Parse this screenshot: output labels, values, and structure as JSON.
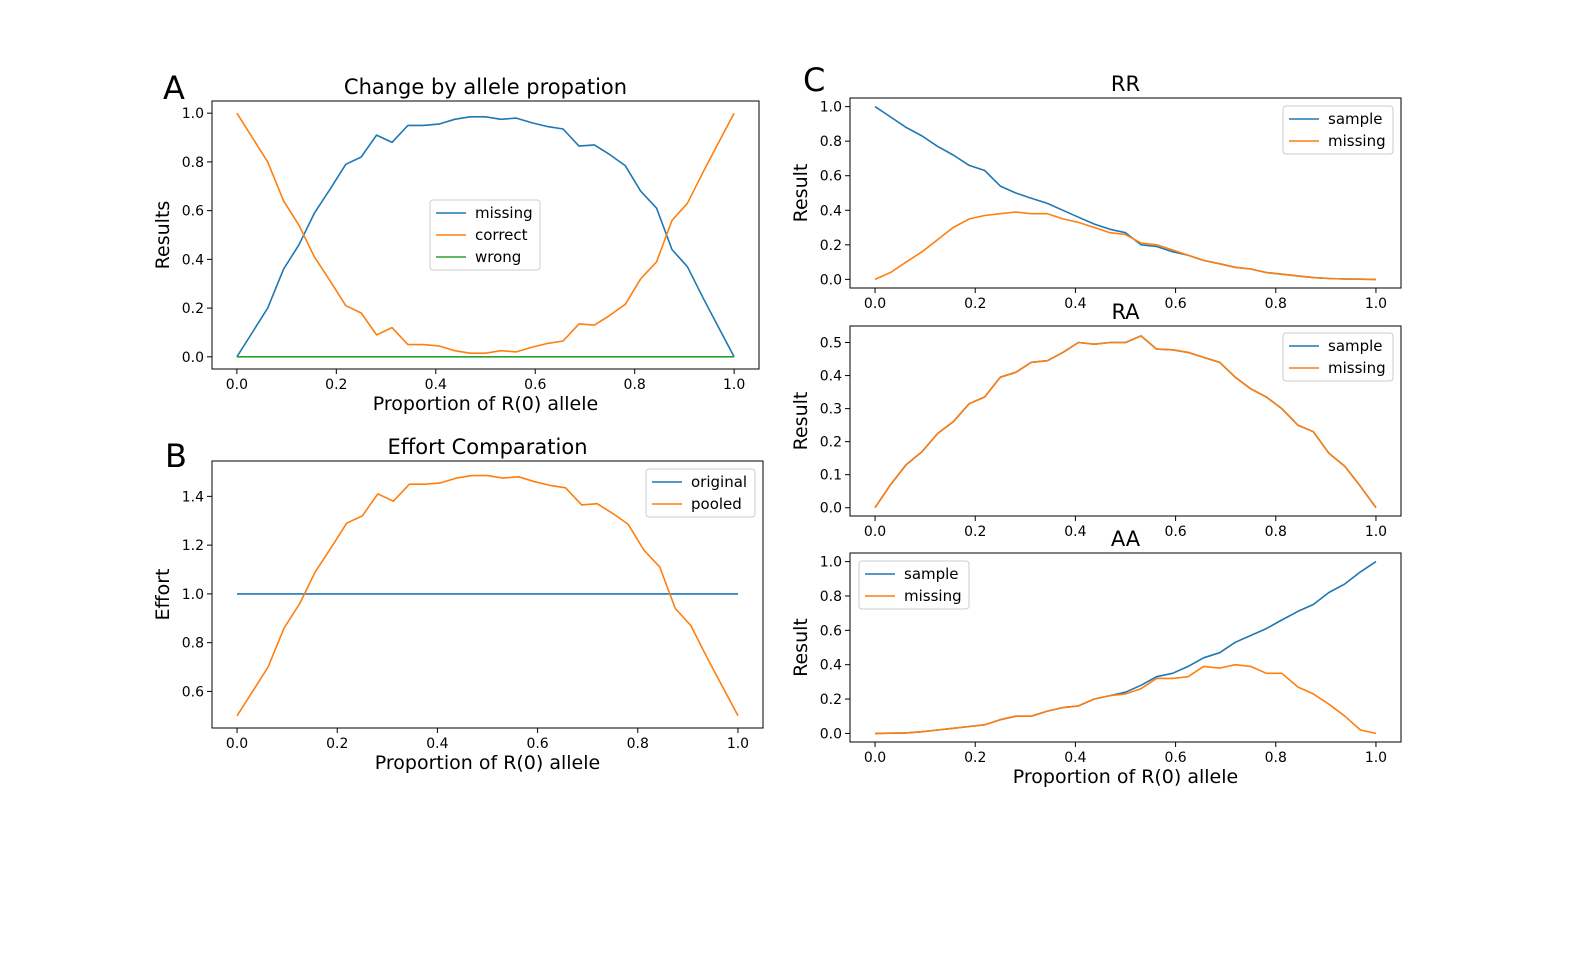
{
  "colors": {
    "blue": "#1f77b4",
    "orange": "#ff7f0e",
    "green": "#2ca02c"
  },
  "chart_data": [
    {
      "panel": "A",
      "type": "line",
      "title": "Change by allele propation",
      "xlabel": "Proportion of R(0) allele",
      "ylabel": "Results",
      "xlim": [
        -0.05,
        1.05
      ],
      "ylim": [
        -0.05,
        1.05
      ],
      "xticks": [
        0.0,
        0.2,
        0.4,
        0.6,
        0.8,
        1.0
      ],
      "yticks": [
        0.0,
        0.2,
        0.4,
        0.6,
        0.8,
        1.0
      ],
      "legend": "center",
      "x": [
        0,
        0.031,
        0.062,
        0.094,
        0.125,
        0.156,
        0.188,
        0.219,
        0.25,
        0.281,
        0.312,
        0.344,
        0.375,
        0.406,
        0.438,
        0.469,
        0.5,
        0.531,
        0.562,
        0.594,
        0.625,
        0.656,
        0.688,
        0.719,
        0.75,
        0.781,
        0.812,
        0.844,
        0.875,
        0.906,
        0.938,
        0.969,
        1.0
      ],
      "series": [
        {
          "name": "missing",
          "color": "#1f77b4",
          "values": [
            0.0,
            0.1,
            0.2,
            0.36,
            0.46,
            0.59,
            0.69,
            0.79,
            0.82,
            0.91,
            0.88,
            0.95,
            0.95,
            0.955,
            0.975,
            0.985,
            0.985,
            0.975,
            0.98,
            0.96,
            0.945,
            0.935,
            0.865,
            0.87,
            0.83,
            0.785,
            0.68,
            0.61,
            0.44,
            0.37,
            0.24,
            0.12,
            0.0
          ]
        },
        {
          "name": "correct",
          "color": "#ff7f0e",
          "values": [
            1.0,
            0.9,
            0.8,
            0.64,
            0.54,
            0.41,
            0.31,
            0.21,
            0.18,
            0.09,
            0.12,
            0.05,
            0.05,
            0.045,
            0.025,
            0.015,
            0.015,
            0.025,
            0.02,
            0.04,
            0.055,
            0.065,
            0.135,
            0.13,
            0.17,
            0.215,
            0.32,
            0.39,
            0.56,
            0.63,
            0.76,
            0.88,
            1.0
          ]
        },
        {
          "name": "wrong",
          "color": "#2ca02c",
          "values": [
            0,
            0,
            0,
            0,
            0,
            0,
            0,
            0,
            0,
            0,
            0,
            0,
            0,
            0,
            0,
            0,
            0,
            0,
            0,
            0,
            0,
            0,
            0,
            0,
            0,
            0,
            0,
            0,
            0,
            0,
            0,
            0,
            0
          ]
        }
      ]
    },
    {
      "panel": "B",
      "type": "line",
      "title": "Effort Comparation",
      "xlabel": "Proportion of R(0) allele",
      "ylabel": "Effort",
      "xlim": [
        -0.05,
        1.05
      ],
      "ylim": [
        0.45,
        1.545
      ],
      "xticks": [
        0.0,
        0.2,
        0.4,
        0.6,
        0.8,
        1.0
      ],
      "yticks": [
        0.6,
        0.8,
        1.0,
        1.2,
        1.4
      ],
      "legend": "top-right",
      "x": [
        0,
        0.031,
        0.062,
        0.094,
        0.125,
        0.156,
        0.188,
        0.219,
        0.25,
        0.281,
        0.312,
        0.344,
        0.375,
        0.406,
        0.438,
        0.469,
        0.5,
        0.531,
        0.562,
        0.594,
        0.625,
        0.656,
        0.688,
        0.719,
        0.75,
        0.781,
        0.812,
        0.844,
        0.875,
        0.906,
        0.938,
        0.969,
        1.0
      ],
      "series": [
        {
          "name": "original",
          "color": "#1f77b4",
          "values": [
            1,
            1,
            1,
            1,
            1,
            1,
            1,
            1,
            1,
            1,
            1,
            1,
            1,
            1,
            1,
            1,
            1,
            1,
            1,
            1,
            1,
            1,
            1,
            1,
            1,
            1,
            1,
            1,
            1,
            1,
            1,
            1,
            1
          ]
        },
        {
          "name": "pooled",
          "color": "#ff7f0e",
          "values": [
            0.5,
            0.6,
            0.7,
            0.86,
            0.96,
            1.09,
            1.19,
            1.29,
            1.32,
            1.41,
            1.38,
            1.45,
            1.45,
            1.455,
            1.475,
            1.485,
            1.485,
            1.475,
            1.48,
            1.46,
            1.445,
            1.435,
            1.365,
            1.37,
            1.33,
            1.285,
            1.18,
            1.11,
            0.94,
            0.87,
            0.74,
            0.62,
            0.5
          ]
        }
      ]
    },
    {
      "panel": "C",
      "type": "line",
      "title": "RR",
      "xlabel": "",
      "ylabel": "Result",
      "xlim": [
        -0.05,
        1.05
      ],
      "ylim": [
        -0.05,
        1.05
      ],
      "xticks": [
        0.0,
        0.2,
        0.4,
        0.6,
        0.8,
        1.0
      ],
      "yticks": [
        0.0,
        0.2,
        0.4,
        0.6,
        0.8,
        1.0
      ],
      "legend": "top-right",
      "x": [
        0,
        0.031,
        0.062,
        0.094,
        0.125,
        0.156,
        0.188,
        0.219,
        0.25,
        0.281,
        0.312,
        0.344,
        0.375,
        0.406,
        0.438,
        0.469,
        0.5,
        0.531,
        0.562,
        0.594,
        0.625,
        0.656,
        0.688,
        0.719,
        0.75,
        0.781,
        0.812,
        0.844,
        0.875,
        0.906,
        0.938,
        0.969,
        1.0
      ],
      "series": [
        {
          "name": "sample",
          "color": "#1f77b4",
          "values": [
            1.0,
            0.94,
            0.88,
            0.83,
            0.77,
            0.72,
            0.66,
            0.63,
            0.54,
            0.5,
            0.47,
            0.44,
            0.4,
            0.36,
            0.32,
            0.29,
            0.27,
            0.2,
            0.19,
            0.16,
            0.14,
            0.11,
            0.09,
            0.07,
            0.06,
            0.04,
            0.03,
            0.02,
            0.01,
            0.005,
            0.002,
            0.001,
            0.0
          ]
        },
        {
          "name": "missing",
          "color": "#ff7f0e",
          "values": [
            0.0,
            0.04,
            0.1,
            0.16,
            0.23,
            0.3,
            0.35,
            0.37,
            0.38,
            0.39,
            0.38,
            0.38,
            0.35,
            0.33,
            0.3,
            0.27,
            0.26,
            0.21,
            0.2,
            0.17,
            0.14,
            0.11,
            0.09,
            0.07,
            0.06,
            0.04,
            0.03,
            0.02,
            0.01,
            0.005,
            0.002,
            0.001,
            0.0
          ]
        }
      ]
    },
    {
      "panel": "",
      "type": "line",
      "title": "RA",
      "xlabel": "",
      "ylabel": "Result",
      "xlim": [
        -0.05,
        1.05
      ],
      "ylim": [
        -0.025,
        0.55
      ],
      "xticks": [
        0.0,
        0.2,
        0.4,
        0.6,
        0.8,
        1.0
      ],
      "yticks": [
        0.0,
        0.1,
        0.2,
        0.3,
        0.4,
        0.5
      ],
      "legend": "top-right",
      "x": [
        0,
        0.031,
        0.062,
        0.094,
        0.125,
        0.156,
        0.188,
        0.219,
        0.25,
        0.281,
        0.312,
        0.344,
        0.375,
        0.406,
        0.438,
        0.469,
        0.5,
        0.531,
        0.562,
        0.594,
        0.625,
        0.656,
        0.688,
        0.719,
        0.75,
        0.781,
        0.812,
        0.844,
        0.875,
        0.906,
        0.938,
        0.969,
        1.0
      ],
      "series": [
        {
          "name": "sample",
          "color": "#1f77b4",
          "values": [
            0.0,
            0.07,
            0.13,
            0.17,
            0.225,
            0.26,
            0.315,
            0.335,
            0.395,
            0.41,
            0.44,
            0.445,
            0.47,
            0.5,
            0.495,
            0.5,
            0.5,
            0.52,
            0.48,
            0.478,
            0.47,
            0.455,
            0.44,
            0.395,
            0.36,
            0.335,
            0.3,
            0.25,
            0.23,
            0.165,
            0.125,
            0.065,
            0.0
          ]
        },
        {
          "name": "missing",
          "color": "#ff7f0e",
          "values": [
            0.0,
            0.07,
            0.13,
            0.17,
            0.225,
            0.26,
            0.315,
            0.335,
            0.395,
            0.41,
            0.44,
            0.445,
            0.47,
            0.5,
            0.495,
            0.5,
            0.5,
            0.52,
            0.48,
            0.478,
            0.47,
            0.455,
            0.44,
            0.395,
            0.36,
            0.335,
            0.3,
            0.25,
            0.23,
            0.165,
            0.125,
            0.065,
            0.0
          ]
        }
      ]
    },
    {
      "panel": "",
      "type": "line",
      "title": "AA",
      "xlabel": "Proportion of R(0) allele",
      "ylabel": "Result",
      "xlim": [
        -0.05,
        1.05
      ],
      "ylim": [
        -0.05,
        1.05
      ],
      "xticks": [
        0.0,
        0.2,
        0.4,
        0.6,
        0.8,
        1.0
      ],
      "yticks": [
        0.0,
        0.2,
        0.4,
        0.6,
        0.8,
        1.0
      ],
      "legend": "top-left",
      "x": [
        0,
        0.031,
        0.062,
        0.094,
        0.125,
        0.156,
        0.188,
        0.219,
        0.25,
        0.281,
        0.312,
        0.344,
        0.375,
        0.406,
        0.438,
        0.469,
        0.5,
        0.531,
        0.562,
        0.594,
        0.625,
        0.656,
        0.688,
        0.719,
        0.75,
        0.781,
        0.812,
        0.844,
        0.875,
        0.906,
        0.938,
        0.969,
        1.0
      ],
      "series": [
        {
          "name": "sample",
          "color": "#1f77b4",
          "values": [
            0.0,
            0.001,
            0.003,
            0.01,
            0.02,
            0.03,
            0.04,
            0.05,
            0.08,
            0.1,
            0.1,
            0.13,
            0.15,
            0.16,
            0.2,
            0.22,
            0.24,
            0.28,
            0.33,
            0.35,
            0.39,
            0.44,
            0.47,
            0.53,
            0.57,
            0.61,
            0.66,
            0.71,
            0.75,
            0.82,
            0.87,
            0.94,
            1.0
          ]
        },
        {
          "name": "missing",
          "color": "#ff7f0e",
          "values": [
            0.0,
            0.001,
            0.003,
            0.01,
            0.02,
            0.03,
            0.04,
            0.05,
            0.08,
            0.1,
            0.1,
            0.13,
            0.15,
            0.16,
            0.2,
            0.22,
            0.23,
            0.26,
            0.32,
            0.32,
            0.33,
            0.39,
            0.38,
            0.4,
            0.39,
            0.35,
            0.35,
            0.27,
            0.23,
            0.17,
            0.1,
            0.02,
            0.0
          ]
        }
      ]
    }
  ]
}
